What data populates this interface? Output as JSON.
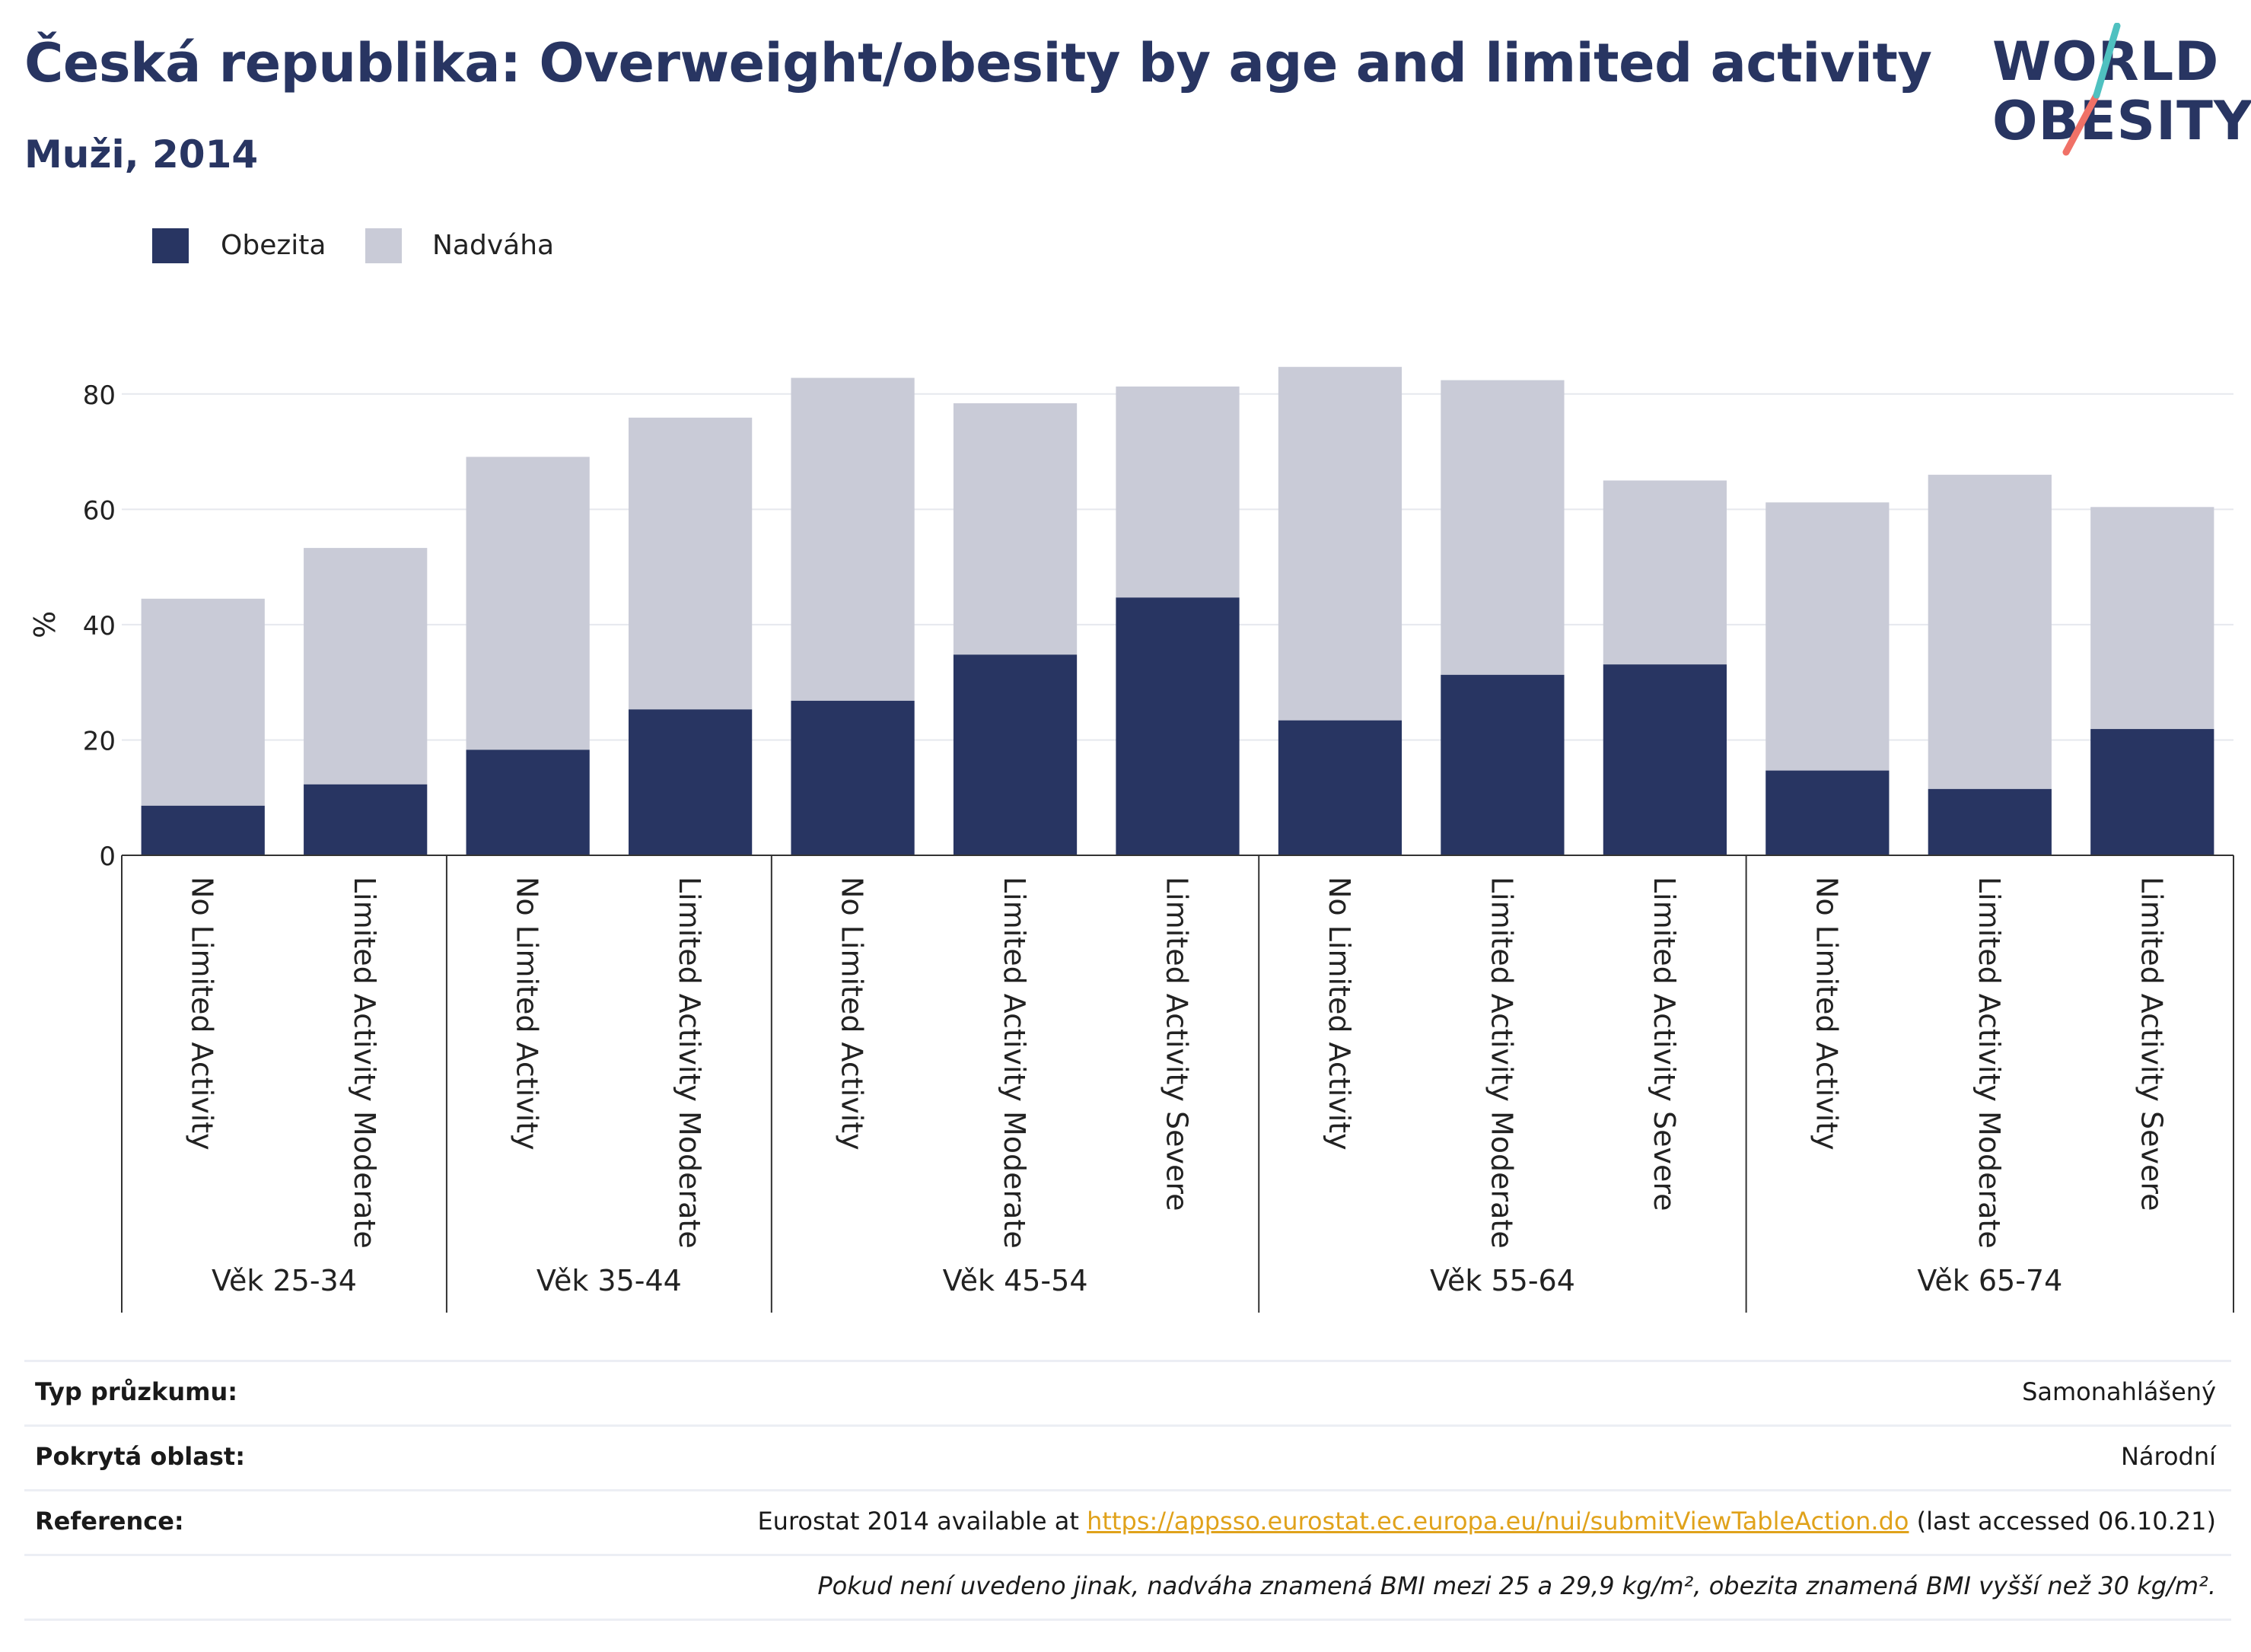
{
  "header": {
    "title": "Česká republika: Overweight/obesity by age and limited activity",
    "subtitle": "Muži, 2014"
  },
  "logo": {
    "line1": "WORLD",
    "line2": "OBESITY",
    "colors": [
      "#283562",
      "#4fc1c0",
      "#f07167"
    ]
  },
  "legend": {
    "items": [
      {
        "label": "Obezita",
        "color": "#283562"
      },
      {
        "label": "Nadváha",
        "color": "#c9cbd7"
      }
    ]
  },
  "chart_data": {
    "type": "bar",
    "stacked": true,
    "ylabel": "%",
    "ylim": [
      0,
      90
    ],
    "yticks": [
      0,
      20,
      40,
      60,
      80
    ],
    "grid": true,
    "legend_position": "top-left",
    "groups": [
      {
        "label": "Věk 25-34",
        "categories": [
          "No Limited Activity",
          "Limited Activity Moderate"
        ]
      },
      {
        "label": "Věk 35-44",
        "categories": [
          "No Limited Activity",
          "Limited Activity Moderate"
        ]
      },
      {
        "label": "Věk 45-54",
        "categories": [
          "No Limited Activity",
          "Limited Activity Moderate",
          "Limited Activity Severe"
        ]
      },
      {
        "label": "Věk 55-64",
        "categories": [
          "No Limited Activity",
          "Limited Activity Moderate",
          "Limited Activity Severe"
        ]
      },
      {
        "label": "Věk 65-74",
        "categories": [
          "No Limited Activity",
          "Limited Activity Moderate",
          "Limited Activity Severe"
        ]
      }
    ],
    "series": [
      {
        "name": "Obezita",
        "color": "#283562",
        "values": [
          8.6,
          12.3,
          18.3,
          25.3,
          26.8,
          34.8,
          44.7,
          23.4,
          31.3,
          33.1,
          14.7,
          11.5,
          21.9
        ]
      },
      {
        "name": "Nadváha",
        "color": "#c9cbd7",
        "values": [
          35.9,
          41.0,
          50.8,
          50.6,
          56.0,
          43.6,
          36.6,
          61.3,
          51.1,
          31.9,
          46.5,
          54.5,
          38.5
        ]
      }
    ]
  },
  "info_table": {
    "survey_type": {
      "label": "Typ průzkumu:",
      "value": "Samonahlášený"
    },
    "coverage": {
      "label": "Pokrytá oblast:",
      "value": "Národní"
    },
    "reference": {
      "label": "Reference:",
      "prefix": "Eurostat 2014 available at ",
      "link": "https://appsso.eurostat.ec.europa.eu/nui/submitViewTableAction.do",
      "suffix": " (last accessed 06.10.21)"
    },
    "note": "Pokud není uvedeno jinak, nadváha znamená BMI mezi 25 a 29,9 kg/m², obezita znamená BMI vyšší než 30 kg/m²."
  }
}
